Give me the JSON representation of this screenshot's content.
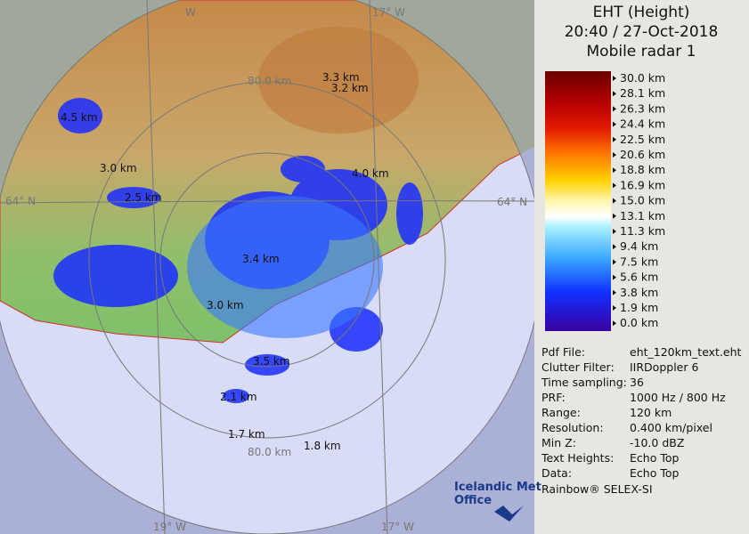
{
  "header": {
    "title": "EHT (Height)",
    "time": "20:40 / 27-Oct-2018",
    "radar": "Mobile radar 1"
  },
  "legend": {
    "labels": [
      "30.0 km",
      "28.1 km",
      "26.3 km",
      "24.4 km",
      "22.5 km",
      "20.6 km",
      "18.8 km",
      "16.9 km",
      "15.0 km",
      "13.1 km",
      "11.3 km",
      "9.4 km",
      "7.5 km",
      "5.6 km",
      "3.8 km",
      "1.9 km",
      "0.0 km"
    ]
  },
  "info": {
    "rows": [
      [
        "Pdf File:",
        "eht_120km_text.eht"
      ],
      [
        "Clutter Filter:",
        "IIRDoppler 6"
      ],
      [
        "Time sampling:",
        "36"
      ],
      [
        "PRF:",
        "1000 Hz / 800 Hz"
      ],
      [
        "Range:",
        "120 km"
      ],
      [
        "Resolution:",
        "0.400 km/pixel"
      ],
      [
        "Min Z:",
        "-10.0 dBZ"
      ],
      [
        "Text Heights:",
        "Echo Top"
      ],
      [
        "Data:",
        "Echo Top"
      ]
    ]
  },
  "footer": "Rainbow® SELEX-SI",
  "logo": {
    "line1": "Icelandic Met",
    "line2": "Office"
  },
  "map": {
    "range_labels": [
      "80.0 km",
      "80.0 km"
    ],
    "grid_labels": [
      "W",
      "17° W",
      "64° N",
      "64° N",
      "19° W",
      "17° W"
    ],
    "echo_top_labels": [
      "4.5 km",
      "3.3 km",
      "3.2 km",
      "3.0 km",
      "4.0 km",
      "2.5 km",
      "3.4 km",
      "3.0 km",
      "3.5 km",
      "2.1 km",
      "1.7 km",
      "1.8 km"
    ]
  }
}
